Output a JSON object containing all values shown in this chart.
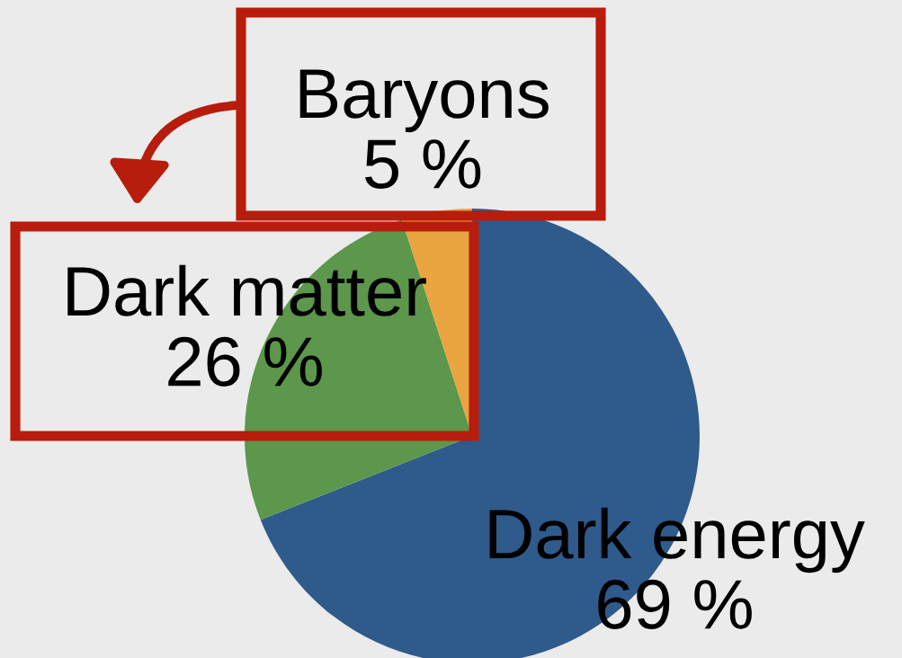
{
  "chart_data": {
    "type": "pie",
    "categories": [
      "Dark energy",
      "Dark matter",
      "Baryons"
    ],
    "values": [
      69,
      26,
      5
    ],
    "value_labels": [
      "69 %",
      "26 %",
      "5 %"
    ],
    "colors": [
      "#2f5a8c",
      "#5c974b",
      "#e8a540"
    ]
  }
}
